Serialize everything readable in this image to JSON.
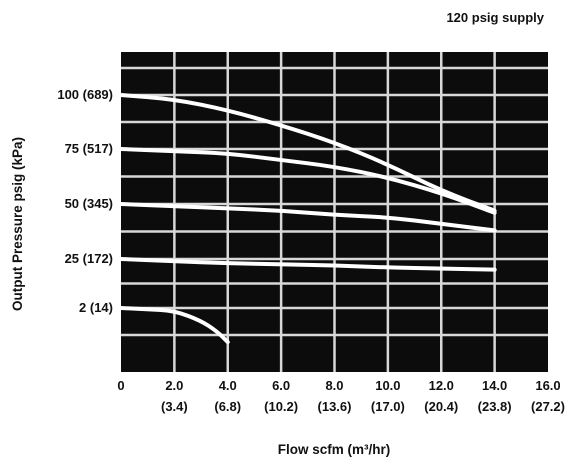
{
  "chart_data": {
    "type": "line",
    "title": "120 psig supply",
    "xlabel": "Flow scfm (m³/hr)",
    "ylabel": "Output Pressure psig (kPa)",
    "x_ticks": [
      {
        "value": 0,
        "label": "0",
        "sub": ""
      },
      {
        "value": 2,
        "label": "2.0",
        "sub": "(3.4)"
      },
      {
        "value": 4,
        "label": "4.0",
        "sub": "(6.8)"
      },
      {
        "value": 6,
        "label": "6.0",
        "sub": "(10.2)"
      },
      {
        "value": 8,
        "label": "8.0",
        "sub": "(13.6)"
      },
      {
        "value": 10,
        "label": "10.0",
        "sub": "(17.0)"
      },
      {
        "value": 12,
        "label": "12.0",
        "sub": "(20.4)"
      },
      {
        "value": 14,
        "label": "14.0",
        "sub": "(23.8)"
      },
      {
        "value": 16,
        "label": "16.0",
        "sub": "(27.2)"
      }
    ],
    "y_ticks": [
      {
        "value": 2,
        "label": "2 (14)"
      },
      {
        "value": 25,
        "label": "25 (172)"
      },
      {
        "value": 50,
        "label": "50 (345)"
      },
      {
        "value": 75,
        "label": "75 (517)"
      },
      {
        "value": 100,
        "label": "100 (689)"
      }
    ],
    "xlim": [
      0,
      16
    ],
    "grid": true,
    "colors": {
      "plot_bg": "#0c0c0c",
      "grid": "#d8d8d8",
      "series": "#ffffff"
    },
    "series": [
      {
        "x": [
          0,
          2,
          4,
          6,
          8,
          10,
          12,
          14
        ],
        "y": [
          100,
          98,
          93,
          86,
          78,
          68,
          56,
          47
        ]
      },
      {
        "x": [
          0,
          2,
          4,
          6,
          8,
          10,
          12,
          14
        ],
        "y": [
          75,
          74,
          73,
          70,
          67,
          62,
          55,
          46
        ]
      },
      {
        "x": [
          0,
          2,
          4,
          6,
          8,
          10,
          12,
          14
        ],
        "y": [
          50,
          49,
          48,
          47,
          45,
          44,
          41,
          38
        ]
      },
      {
        "x": [
          0,
          2,
          4,
          6,
          8,
          10,
          12,
          14
        ],
        "y": [
          25,
          24,
          23,
          22.5,
          22,
          21,
          20.5,
          20
        ]
      },
      {
        "x": [
          0,
          1,
          2,
          3,
          3.6,
          4.0
        ],
        "y": [
          2,
          1.4,
          0.7,
          -4,
          -9,
          -14
        ]
      }
    ]
  }
}
